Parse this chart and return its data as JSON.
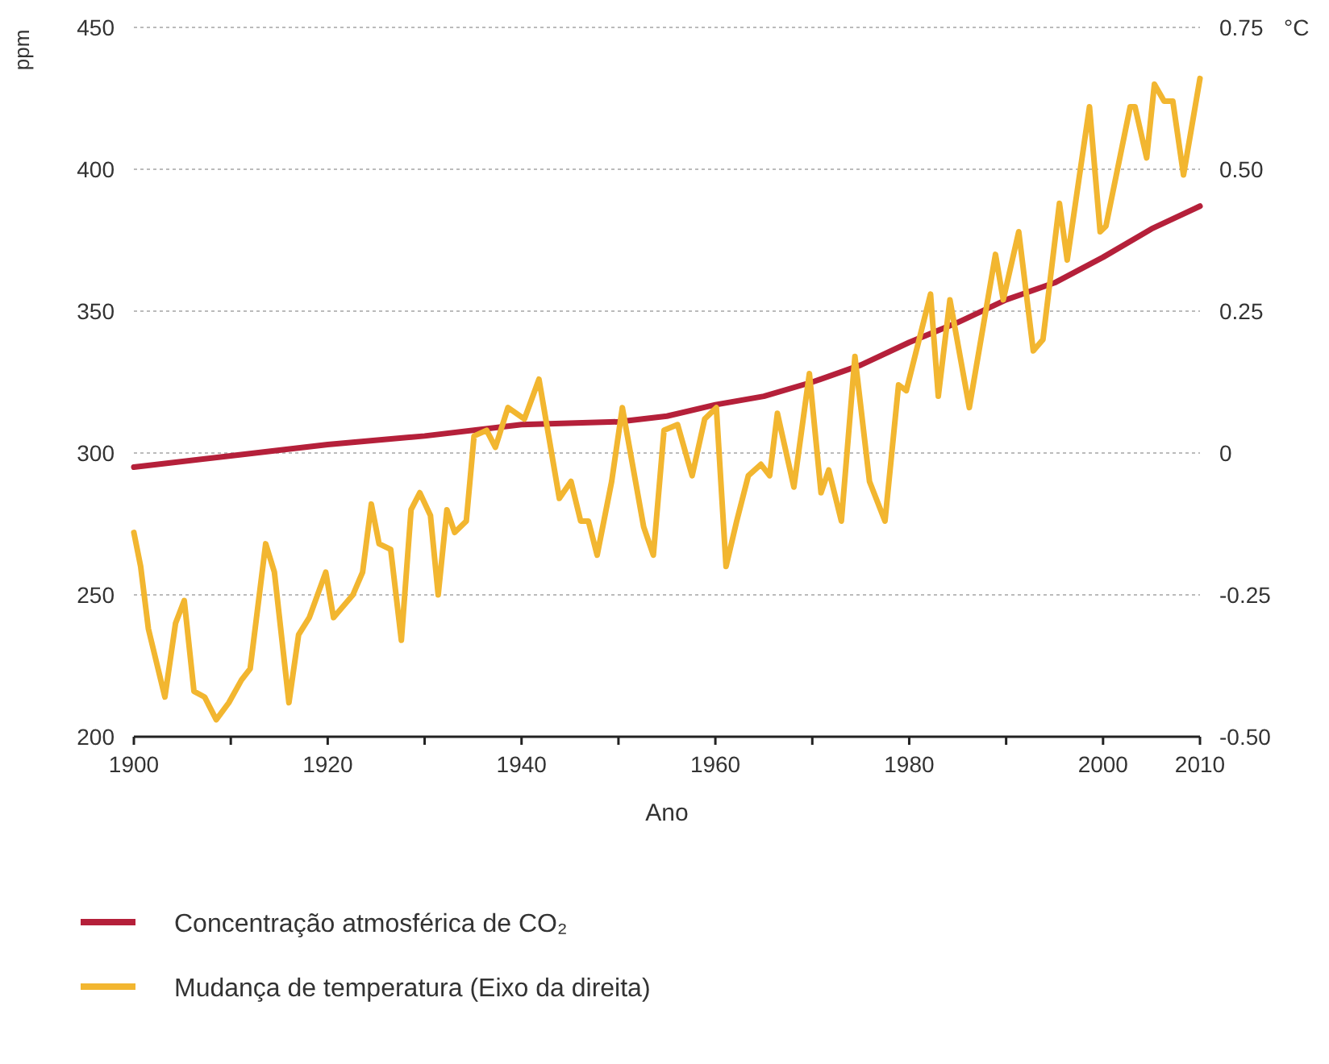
{
  "chart_data": {
    "type": "line",
    "xlabel": "Ano",
    "ylabel": "ppm",
    "y2label": "°C",
    "xlim": [
      1900,
      2010
    ],
    "xticks": [
      1900,
      {
        "value": 1910,
        "label": null
      },
      1920,
      {
        "value": 1930,
        "label": null
      },
      1940,
      {
        "value": 1950,
        "label": null
      },
      1960,
      {
        "value": 1970,
        "label": null
      },
      1980,
      {
        "value": 1990,
        "label": null
      },
      2000,
      2010
    ],
    "ylim": [
      200,
      450
    ],
    "yticks": [
      200,
      250,
      300,
      350,
      400,
      450
    ],
    "y2lim": [
      -0.5,
      0.75
    ],
    "y2ticks": [
      {
        "value": -0.5,
        "label": "-0.50"
      },
      -0.25,
      0,
      0.25,
      {
        "value": 0.5,
        "label": "0.50"
      },
      0.75
    ],
    "grid": "y",
    "legend": "bottom",
    "line_style": "solid",
    "marker": "none",
    "series": [
      {
        "name": "Concentração atmosférica de CO₂",
        "color": "#b5203a",
        "x": [
          1900,
          1910,
          1920,
          1930,
          1940,
          1950,
          1955,
          1960,
          1965,
          1970,
          1975,
          1980,
          1985,
          1990,
          1995,
          2000,
          2005,
          2010
        ],
        "values": [
          295,
          299,
          303,
          306,
          310,
          311,
          313,
          317,
          320,
          325,
          331,
          339,
          346,
          354,
          360,
          369,
          379,
          387
        ]
      },
      {
        "name": "Mudança de temperatura (Eixo da direita)",
        "color": "#f2b630",
        "axis": "y2",
        "x": [
          1900,
          1900.7,
          1901.5,
          1903.2,
          1904.3,
          1905.2,
          1906.2,
          1907.3,
          1908.5,
          1909.8,
          1911.1,
          1912,
          1913.6,
          1914.5,
          1916,
          1917,
          1918.1,
          1919.8,
          1920.6,
          1922.6,
          1923.6,
          1924.5,
          1925.3,
          1926.5,
          1927.6,
          1928.6,
          1929.5,
          1930.6,
          1931.4,
          1932.3,
          1933.1,
          1934.3,
          1935.1,
          1936.4,
          1937.3,
          1938.6,
          1940.3,
          1941.8,
          1943.9,
          1945.1,
          1946.1,
          1946.9,
          1947.8,
          1949.3,
          1950.4,
          1952.6,
          1953.6,
          1954.7,
          1956.1,
          1957.6,
          1958.9,
          1960.1,
          1961.1,
          1962.2,
          1963.4,
          1964.7,
          1965.6,
          1966.4,
          1968.1,
          1969.7,
          1970.9,
          1971.7,
          1973,
          1974.4,
          1975.9,
          1977.5,
          1978.9,
          1979.7,
          1982.2,
          1983,
          1984.2,
          1986.2,
          1988.9,
          1989.7,
          1991.3,
          1992.8,
          1993.8,
          1995.5,
          1996.3,
          1998.6,
          1999.7,
          2000.3,
          2002.8,
          2003.3,
          2004.5,
          2005.3,
          2006.3,
          2007.2,
          2008.3,
          2010
        ],
        "values": [
          -0.14,
          -0.2,
          -0.31,
          -0.43,
          -0.3,
          -0.26,
          -0.42,
          -0.43,
          -0.47,
          -0.44,
          -0.4,
          -0.38,
          -0.16,
          -0.21,
          -0.44,
          -0.32,
          -0.29,
          -0.21,
          -0.29,
          -0.25,
          -0.21,
          -0.09,
          -0.16,
          -0.17,
          -0.33,
          -0.1,
          -0.07,
          -0.11,
          -0.25,
          -0.1,
          -0.14,
          -0.12,
          0.03,
          0.04,
          0.01,
          0.08,
          0.06,
          0.13,
          -0.08,
          -0.05,
          -0.12,
          -0.12,
          -0.18,
          -0.05,
          0.08,
          -0.13,
          -0.18,
          0.04,
          0.05,
          -0.04,
          0.06,
          0.08,
          -0.2,
          -0.12,
          -0.04,
          -0.02,
          -0.04,
          0.07,
          -0.06,
          0.14,
          -0.07,
          -0.03,
          -0.12,
          0.17,
          -0.05,
          -0.12,
          0.12,
          0.11,
          0.28,
          0.1,
          0.27,
          0.08,
          0.35,
          0.27,
          0.39,
          0.18,
          0.2,
          0.44,
          0.34,
          0.61,
          0.39,
          0.4,
          0.61,
          0.61,
          0.52,
          0.65,
          0.62,
          0.62,
          0.49,
          0.66
        ]
      }
    ]
  }
}
